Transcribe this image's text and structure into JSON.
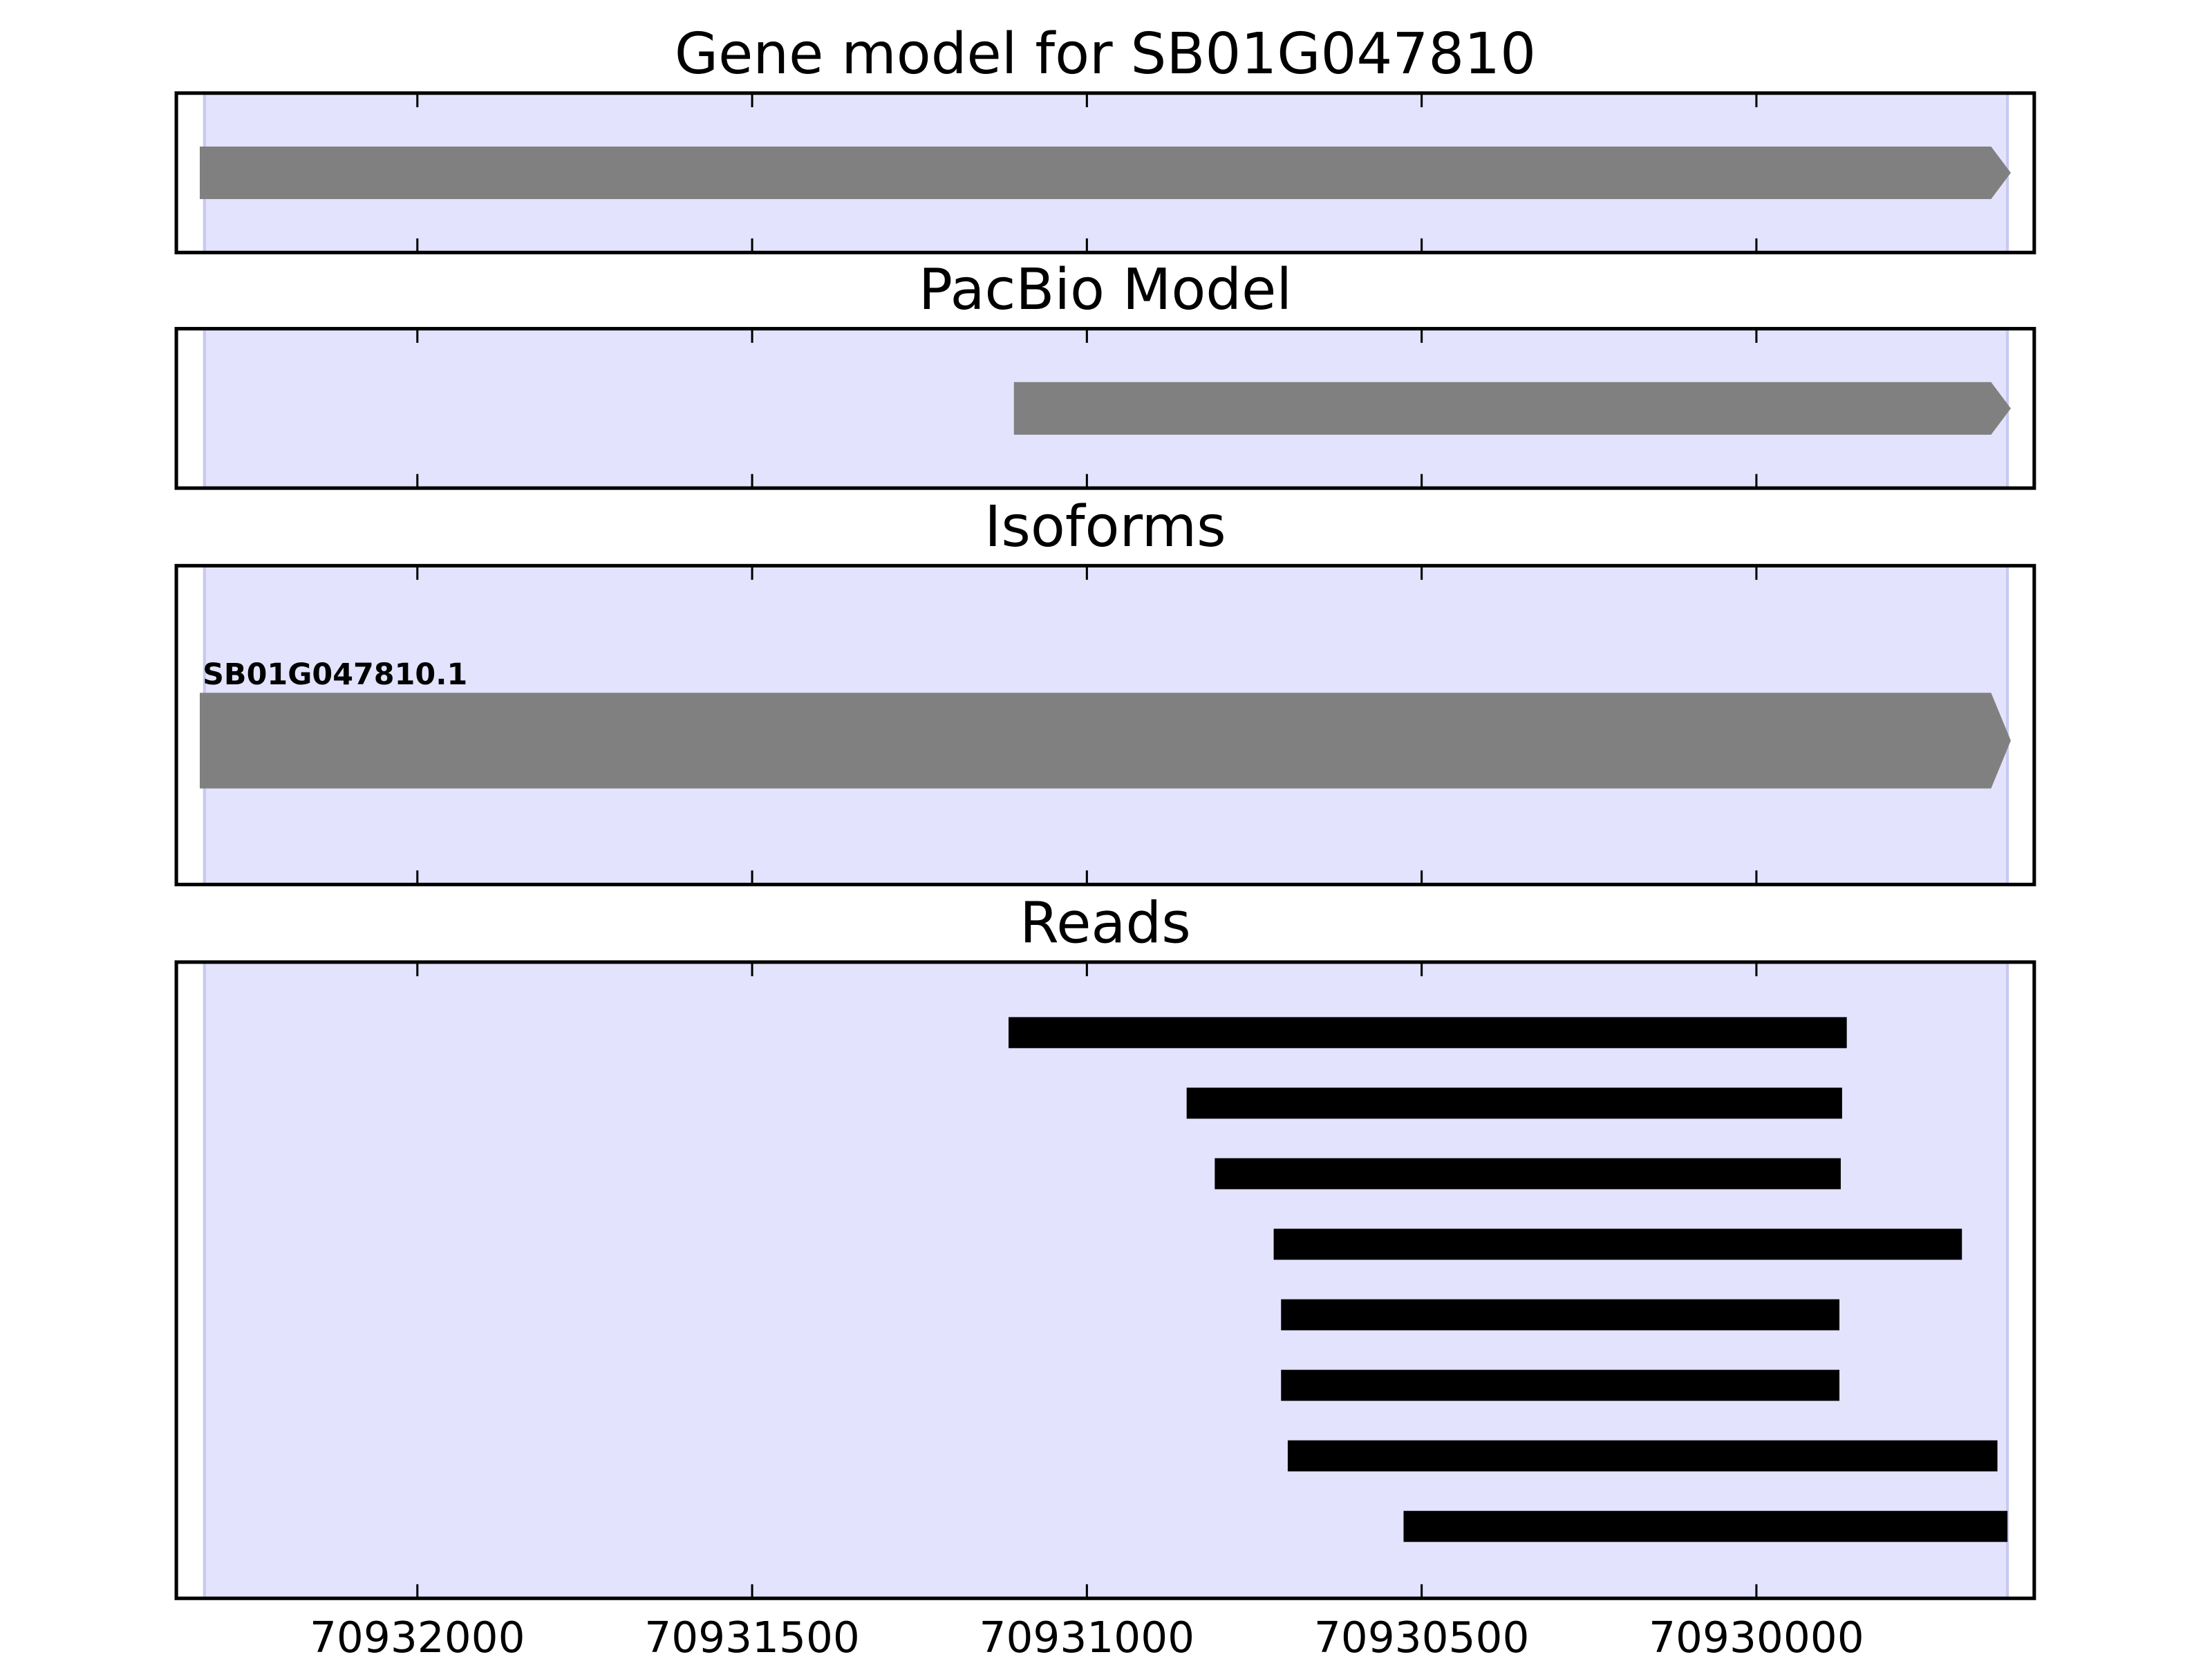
{
  "chart_data": {
    "type": "gene-tracks",
    "xlim": [
      70932360,
      70929585
    ],
    "xticks": [
      70932000,
      70931500,
      70931000,
      70930500,
      70930000
    ],
    "shade": {
      "start": 70932318,
      "end": 70929625,
      "color": "#e3e3fd"
    },
    "panels": [
      {
        "title": "Gene model for SB01G047810",
        "arrow": true,
        "color": "#808080",
        "features": [
          {
            "start": 70932325,
            "end": 70929620
          }
        ]
      },
      {
        "title": "PacBio Model",
        "arrow": true,
        "color": "#808080",
        "features": [
          {
            "start": 70931109,
            "end": 70929620
          }
        ]
      },
      {
        "title": "Isoforms",
        "arrow": true,
        "color": "#808080",
        "features": [
          {
            "label": "SB01G047810.1",
            "start": 70932325,
            "end": 70929620
          }
        ]
      },
      {
        "title": "Reads",
        "arrow": false,
        "color": "#000000",
        "features": [
          {
            "start": 70931117,
            "end": 70929865
          },
          {
            "start": 70930851,
            "end": 70929872
          },
          {
            "start": 70930809,
            "end": 70929874
          },
          {
            "start": 70930721,
            "end": 70929693
          },
          {
            "start": 70930710,
            "end": 70929876
          },
          {
            "start": 70930710,
            "end": 70929876
          },
          {
            "start": 70930700,
            "end": 70929640
          },
          {
            "start": 70930527,
            "end": 70929625
          }
        ]
      }
    ]
  }
}
